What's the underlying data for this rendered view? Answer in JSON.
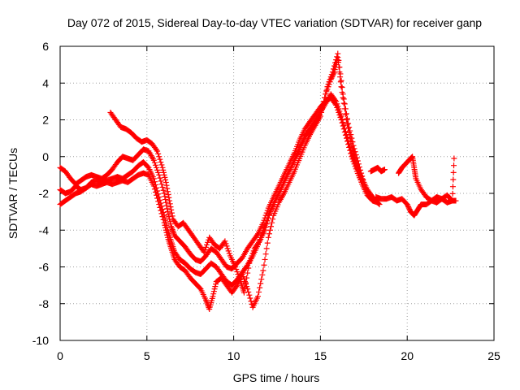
{
  "chart_data": {
    "type": "scatter",
    "title": "Day 072 of 2015, Sidereal Day-to-day VTEC variation (SDTVAR) for receiver ganp",
    "xlabel": "GPS time / hours",
    "ylabel": "SDTVAR / TECUs",
    "xlim": [
      0,
      25
    ],
    "ylim": [
      -10,
      6
    ],
    "xticks": [
      0,
      5,
      10,
      15,
      20,
      25
    ],
    "yticks": [
      -10,
      -8,
      -6,
      -4,
      -2,
      0,
      2,
      4,
      6
    ],
    "grid": true,
    "marker": "plus",
    "color": "#ff0000",
    "series": [
      {
        "values": [
          [
            0.0,
            -0.6
          ],
          [
            0.3,
            -0.8
          ],
          [
            0.6,
            -1.2
          ],
          [
            0.9,
            -1.5
          ],
          [
            1.2,
            -1.3
          ],
          [
            1.5,
            -1.1
          ],
          [
            1.8,
            -1.0
          ],
          [
            2.1,
            -1.1
          ],
          [
            2.4,
            -1.2
          ],
          [
            2.7,
            -1.0
          ],
          [
            3.0,
            -0.7
          ],
          [
            3.3,
            -0.3
          ],
          [
            3.6,
            0.0
          ],
          [
            3.9,
            -0.1
          ],
          [
            4.2,
            -0.2
          ],
          [
            4.5,
            0.1
          ],
          [
            4.8,
            0.4
          ],
          [
            5.1,
            0.3
          ],
          [
            5.4,
            -0.2
          ],
          [
            5.7,
            -1.0
          ],
          [
            6.0,
            -2.0
          ],
          [
            6.2,
            -3.0
          ],
          [
            6.4,
            -3.8
          ],
          [
            6.6,
            -4.3
          ],
          [
            6.9,
            -4.6
          ],
          [
            7.2,
            -4.9
          ],
          [
            7.5,
            -5.3
          ],
          [
            7.8,
            -5.6
          ],
          [
            8.1,
            -5.7
          ],
          [
            8.4,
            -5.4
          ],
          [
            8.7,
            -5.0
          ],
          [
            9.0,
            -5.2
          ],
          [
            9.3,
            -5.6
          ],
          [
            9.6,
            -6.0
          ],
          [
            9.9,
            -6.1
          ],
          [
            10.2,
            -5.8
          ],
          [
            10.5,
            -5.5
          ],
          [
            10.8,
            -5.0
          ],
          [
            11.1,
            -4.6
          ],
          [
            11.4,
            -4.2
          ],
          [
            11.7,
            -3.6
          ],
          [
            12.0,
            -2.8
          ],
          [
            12.3,
            -2.2
          ],
          [
            12.6,
            -1.6
          ],
          [
            12.9,
            -1.0
          ],
          [
            13.2,
            -0.4
          ],
          [
            13.5,
            0.2
          ],
          [
            13.8,
            0.9
          ],
          [
            14.1,
            1.5
          ],
          [
            14.4,
            1.9
          ],
          [
            14.7,
            2.3
          ],
          [
            15.0,
            2.7
          ],
          [
            15.3,
            3.0
          ],
          [
            15.6,
            3.2
          ],
          [
            15.9,
            2.8
          ],
          [
            16.2,
            2.0
          ],
          [
            16.5,
            1.0
          ],
          [
            16.8,
            0.0
          ],
          [
            17.1,
            -0.8
          ],
          [
            17.4,
            -1.5
          ],
          [
            17.7,
            -2.1
          ],
          [
            18.0,
            -2.4
          ],
          [
            18.3,
            -2.5
          ]
        ]
      },
      {
        "values": [
          [
            0.0,
            -1.8
          ],
          [
            0.3,
            -2.0
          ],
          [
            0.6,
            -1.9
          ],
          [
            0.9,
            -1.6
          ],
          [
            1.2,
            -1.8
          ],
          [
            1.5,
            -1.7
          ],
          [
            1.8,
            -1.4
          ],
          [
            2.1,
            -1.3
          ],
          [
            2.4,
            -1.4
          ],
          [
            2.7,
            -1.3
          ],
          [
            3.0,
            -1.2
          ],
          [
            3.3,
            -1.1
          ],
          [
            3.6,
            -1.2
          ],
          [
            3.9,
            -1.0
          ],
          [
            4.2,
            -0.8
          ],
          [
            4.5,
            -0.5
          ],
          [
            4.8,
            -0.3
          ],
          [
            5.1,
            -0.6
          ],
          [
            5.4,
            -1.2
          ],
          [
            5.7,
            -2.2
          ],
          [
            6.0,
            -3.2
          ],
          [
            6.2,
            -4.0
          ],
          [
            6.4,
            -4.6
          ],
          [
            6.6,
            -5.2
          ],
          [
            6.9,
            -5.6
          ],
          [
            7.2,
            -5.8
          ],
          [
            7.5,
            -6.1
          ],
          [
            7.8,
            -6.3
          ],
          [
            8.1,
            -6.4
          ],
          [
            8.4,
            -6.1
          ],
          [
            8.7,
            -5.8
          ],
          [
            9.0,
            -6.0
          ],
          [
            9.3,
            -6.4
          ],
          [
            9.6,
            -6.8
          ],
          [
            9.9,
            -7.0
          ],
          [
            10.2,
            -6.7
          ],
          [
            10.5,
            -6.3
          ],
          [
            10.8,
            -5.9
          ],
          [
            11.1,
            -5.4
          ],
          [
            11.4,
            -4.8
          ],
          [
            11.7,
            -4.0
          ],
          [
            12.0,
            -3.2
          ],
          [
            12.3,
            -2.6
          ],
          [
            12.6,
            -2.0
          ],
          [
            12.9,
            -1.4
          ],
          [
            13.2,
            -0.8
          ],
          [
            13.5,
            -0.2
          ],
          [
            13.8,
            0.5
          ],
          [
            14.1,
            1.1
          ],
          [
            14.4,
            1.5
          ],
          [
            14.7,
            1.9
          ],
          [
            15.0,
            2.4
          ],
          [
            15.3,
            2.9
          ],
          [
            15.6,
            3.4
          ],
          [
            15.9,
            3.0
          ],
          [
            16.2,
            2.2
          ],
          [
            16.5,
            1.2
          ],
          [
            16.8,
            0.2
          ],
          [
            17.1,
            -0.6
          ],
          [
            17.4,
            -1.2
          ],
          [
            17.7,
            -1.8
          ],
          [
            18.0,
            -2.2
          ]
        ]
      },
      {
        "values": [
          [
            0.0,
            -2.6
          ],
          [
            0.3,
            -2.4
          ],
          [
            0.6,
            -2.2
          ],
          [
            0.9,
            -2.0
          ],
          [
            1.2,
            -1.9
          ],
          [
            1.5,
            -1.7
          ],
          [
            1.8,
            -1.5
          ],
          [
            2.1,
            -1.6
          ],
          [
            2.4,
            -1.5
          ],
          [
            2.7,
            -1.4
          ],
          [
            3.0,
            -1.5
          ],
          [
            3.3,
            -1.4
          ],
          [
            3.6,
            -1.3
          ],
          [
            3.9,
            -1.4
          ],
          [
            4.2,
            -1.2
          ],
          [
            4.5,
            -1.0
          ],
          [
            4.8,
            -0.9
          ],
          [
            5.1,
            -1.0
          ],
          [
            5.4,
            -1.6
          ],
          [
            5.7,
            -2.6
          ],
          [
            6.0,
            -3.6
          ],
          [
            6.2,
            -4.4
          ],
          [
            6.4,
            -5.0
          ],
          [
            6.6,
            -5.6
          ],
          [
            6.9,
            -6.0
          ],
          [
            7.2,
            -6.2
          ],
          [
            7.5,
            -6.6
          ],
          [
            7.8,
            -6.9
          ],
          [
            8.1,
            -7.2
          ],
          [
            8.4,
            -7.8
          ],
          [
            8.6,
            -8.3
          ],
          [
            8.8,
            -7.6
          ],
          [
            9.0,
            -6.8
          ],
          [
            9.3,
            -6.6
          ],
          [
            9.6,
            -7.0
          ],
          [
            9.9,
            -7.4
          ],
          [
            10.2,
            -7.0
          ],
          [
            10.5,
            -6.4
          ],
          [
            10.8,
            -7.2
          ],
          [
            11.1,
            -8.2
          ],
          [
            11.4,
            -7.6
          ],
          [
            11.7,
            -6.2
          ],
          [
            12.0,
            -4.4
          ],
          [
            12.3,
            -3.2
          ],
          [
            12.6,
            -2.5
          ],
          [
            12.9,
            -2.0
          ],
          [
            13.2,
            -1.4
          ],
          [
            13.5,
            -0.8
          ],
          [
            13.8,
            -0.1
          ],
          [
            14.1,
            0.6
          ],
          [
            14.4,
            1.2
          ],
          [
            14.7,
            1.7
          ],
          [
            15.0,
            2.2
          ],
          [
            15.3,
            3.4
          ],
          [
            15.6,
            4.2
          ],
          [
            15.8,
            4.6
          ],
          [
            16.0,
            5.4
          ],
          [
            16.2,
            3.8
          ],
          [
            16.5,
            2.0
          ],
          [
            16.8,
            0.6
          ],
          [
            17.1,
            -0.4
          ],
          [
            17.4,
            -1.4
          ]
        ]
      },
      {
        "values": [
          [
            2.9,
            2.4
          ],
          [
            3.2,
            2.0
          ],
          [
            3.5,
            1.6
          ],
          [
            3.8,
            1.5
          ],
          [
            4.1,
            1.3
          ],
          [
            4.4,
            1.0
          ],
          [
            4.7,
            0.8
          ],
          [
            5.0,
            0.9
          ],
          [
            5.3,
            0.7
          ],
          [
            5.6,
            0.3
          ],
          [
            5.9,
            -0.6
          ],
          [
            6.1,
            -1.4
          ],
          [
            6.3,
            -2.4
          ],
          [
            6.5,
            -3.4
          ],
          [
            6.8,
            -3.8
          ],
          [
            7.1,
            -3.6
          ],
          [
            7.4,
            -4.0
          ],
          [
            7.7,
            -4.4
          ],
          [
            8.0,
            -4.8
          ],
          [
            8.3,
            -5.2
          ],
          [
            8.6,
            -4.4
          ],
          [
            8.9,
            -4.8
          ],
          [
            9.2,
            -5.0
          ],
          [
            9.5,
            -4.6
          ],
          [
            9.8,
            -5.4
          ],
          [
            10.1,
            -6.0
          ],
          [
            10.4,
            -6.8
          ],
          [
            10.6,
            -7.4
          ],
          [
            10.9,
            -5.8
          ],
          [
            11.2,
            -5.0
          ],
          [
            11.5,
            -4.6
          ],
          [
            11.8,
            -4.0
          ],
          [
            12.1,
            -3.0
          ],
          [
            12.4,
            -2.4
          ],
          [
            12.7,
            -1.8
          ],
          [
            13.0,
            -1.2
          ],
          [
            13.3,
            -0.6
          ],
          [
            13.6,
            0.0
          ],
          [
            13.9,
            0.6
          ],
          [
            14.2,
            1.2
          ],
          [
            14.5,
            1.6
          ],
          [
            14.8,
            2.0
          ],
          [
            15.1,
            2.6
          ],
          [
            15.4,
            3.8
          ],
          [
            15.7,
            4.6
          ],
          [
            16.0,
            5.6
          ],
          [
            16.3,
            3.4
          ],
          [
            16.6,
            1.8
          ],
          [
            16.9,
            0.6
          ],
          [
            17.2,
            -0.4
          ],
          [
            17.5,
            -1.4
          ],
          [
            17.8,
            -2.0
          ],
          [
            18.1,
            -2.3
          ],
          [
            18.4,
            -2.6
          ]
        ]
      },
      {
        "values": [
          [
            18.2,
            -2.2
          ],
          [
            18.5,
            -2.3
          ],
          [
            18.8,
            -2.3
          ],
          [
            19.1,
            -2.2
          ],
          [
            19.4,
            -2.4
          ],
          [
            19.7,
            -2.3
          ],
          [
            20.0,
            -2.6
          ],
          [
            20.2,
            -3.0
          ],
          [
            20.4,
            -3.2
          ],
          [
            20.6,
            -2.9
          ],
          [
            20.8,
            -2.6
          ],
          [
            21.1,
            -2.6
          ],
          [
            21.4,
            -2.4
          ],
          [
            21.7,
            -2.2
          ],
          [
            22.0,
            -2.3
          ],
          [
            22.3,
            -2.5
          ],
          [
            22.6,
            -2.4
          ],
          [
            22.8,
            -2.4
          ]
        ]
      },
      {
        "values": [
          [
            17.9,
            -0.8
          ],
          [
            18.1,
            -0.7
          ],
          [
            18.3,
            -0.6
          ],
          [
            18.5,
            -0.8
          ],
          [
            18.7,
            -0.7
          ],
          [
            19.5,
            -0.9
          ],
          [
            19.7,
            -0.6
          ],
          [
            19.9,
            -0.4
          ],
          [
            20.1,
            -0.2
          ],
          [
            20.3,
            0.0
          ],
          [
            20.4,
            -0.6
          ],
          [
            20.5,
            -1.2
          ],
          [
            20.8,
            -1.8
          ],
          [
            21.1,
            -2.2
          ],
          [
            21.4,
            -2.4
          ],
          [
            21.7,
            -2.5
          ],
          [
            22.0,
            -2.3
          ],
          [
            22.3,
            -2.1
          ],
          [
            22.6,
            -2.4
          ],
          [
            22.7,
            -0.1
          ]
        ]
      }
    ]
  }
}
